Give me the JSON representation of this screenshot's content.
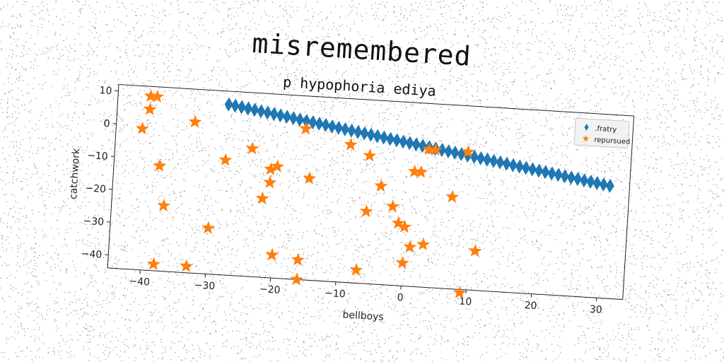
{
  "chart_data": {
    "type": "scatter",
    "title": "misremembered",
    "subtitle": "p hypophoria ediya",
    "xlabel": "bellboys",
    "ylabel": "catchwork",
    "xlim": [
      -45,
      34
    ],
    "ylim": [
      -44,
      12
    ],
    "xticks": [
      -40,
      -30,
      -20,
      -10,
      0,
      10,
      20,
      30
    ],
    "yticks": [
      10,
      0,
      -10,
      -20,
      -30,
      -40
    ],
    "legend_position": "top-right",
    "grid": false,
    "series": [
      {
        "name": ".fratry",
        "marker": "thin-diamond",
        "color": "#1f77b4",
        "x": [
          -28,
          -27,
          -26,
          -25,
          -24,
          -23,
          -22,
          -21,
          -20,
          -19,
          -18,
          -17,
          -16,
          -15,
          -14,
          -13,
          -12,
          -11,
          -10,
          -9,
          -8,
          -7,
          -6,
          -5,
          -4,
          -3,
          -2,
          -1,
          0,
          1,
          2,
          3,
          4,
          5,
          6,
          7,
          8,
          9,
          10,
          11,
          12,
          13,
          14,
          15,
          16,
          17,
          18,
          19,
          20,
          21,
          22,
          23,
          24,
          25,
          26,
          27,
          28,
          29,
          30,
          31
        ],
        "y": [
          8.0,
          7.7,
          7.4,
          7.1,
          6.8,
          6.5,
          6.2,
          5.9,
          5.6,
          5.3,
          5.0,
          4.7,
          4.4,
          4.1,
          3.8,
          3.5,
          3.2,
          2.9,
          2.6,
          2.3,
          2.0,
          1.7,
          1.4,
          1.1,
          0.8,
          0.5,
          0.2,
          -0.1,
          -0.4,
          -0.7,
          -1.0,
          -1.3,
          -1.6,
          -1.9,
          -2.2,
          -2.5,
          -2.8,
          -3.1,
          -3.4,
          -3.7,
          -4.0,
          -4.3,
          -4.6,
          -4.9,
          -5.2,
          -5.5,
          -5.8,
          -6.1,
          -6.4,
          -6.7,
          -7.0,
          -7.3,
          -7.6,
          -7.9,
          -8.2,
          -8.5,
          -8.8,
          -9.1,
          -9.4,
          -9.7
        ]
      },
      {
        "name": "repursued",
        "marker": "star",
        "color": "#ff7f0e",
        "x": [
          -40,
          -39,
          -40,
          -41,
          -38,
          -37,
          -38,
          -33,
          -33,
          -30,
          -28,
          -24,
          -22,
          -21,
          -21,
          -20,
          -20,
          -16,
          -16,
          -15,
          -16,
          -9,
          -6,
          -6,
          -7,
          -4,
          -2,
          -1,
          0,
          0,
          1,
          1,
          2,
          3,
          4,
          3,
          7,
          9,
          9,
          11
        ],
        "y": [
          9,
          9,
          5,
          -1,
          -12,
          -24,
          -42,
          -42,
          2,
          -30,
          -9,
          -5,
          -20,
          -15,
          -11,
          -10,
          -37,
          -38,
          -44,
          -13,
          2,
          -2,
          -5,
          -22,
          -40,
          -14,
          -20,
          -25,
          -26,
          -37,
          -9,
          -32,
          -9,
          -31,
          -2,
          -2,
          -16,
          -2,
          -45,
          -32
        ]
      }
    ]
  }
}
